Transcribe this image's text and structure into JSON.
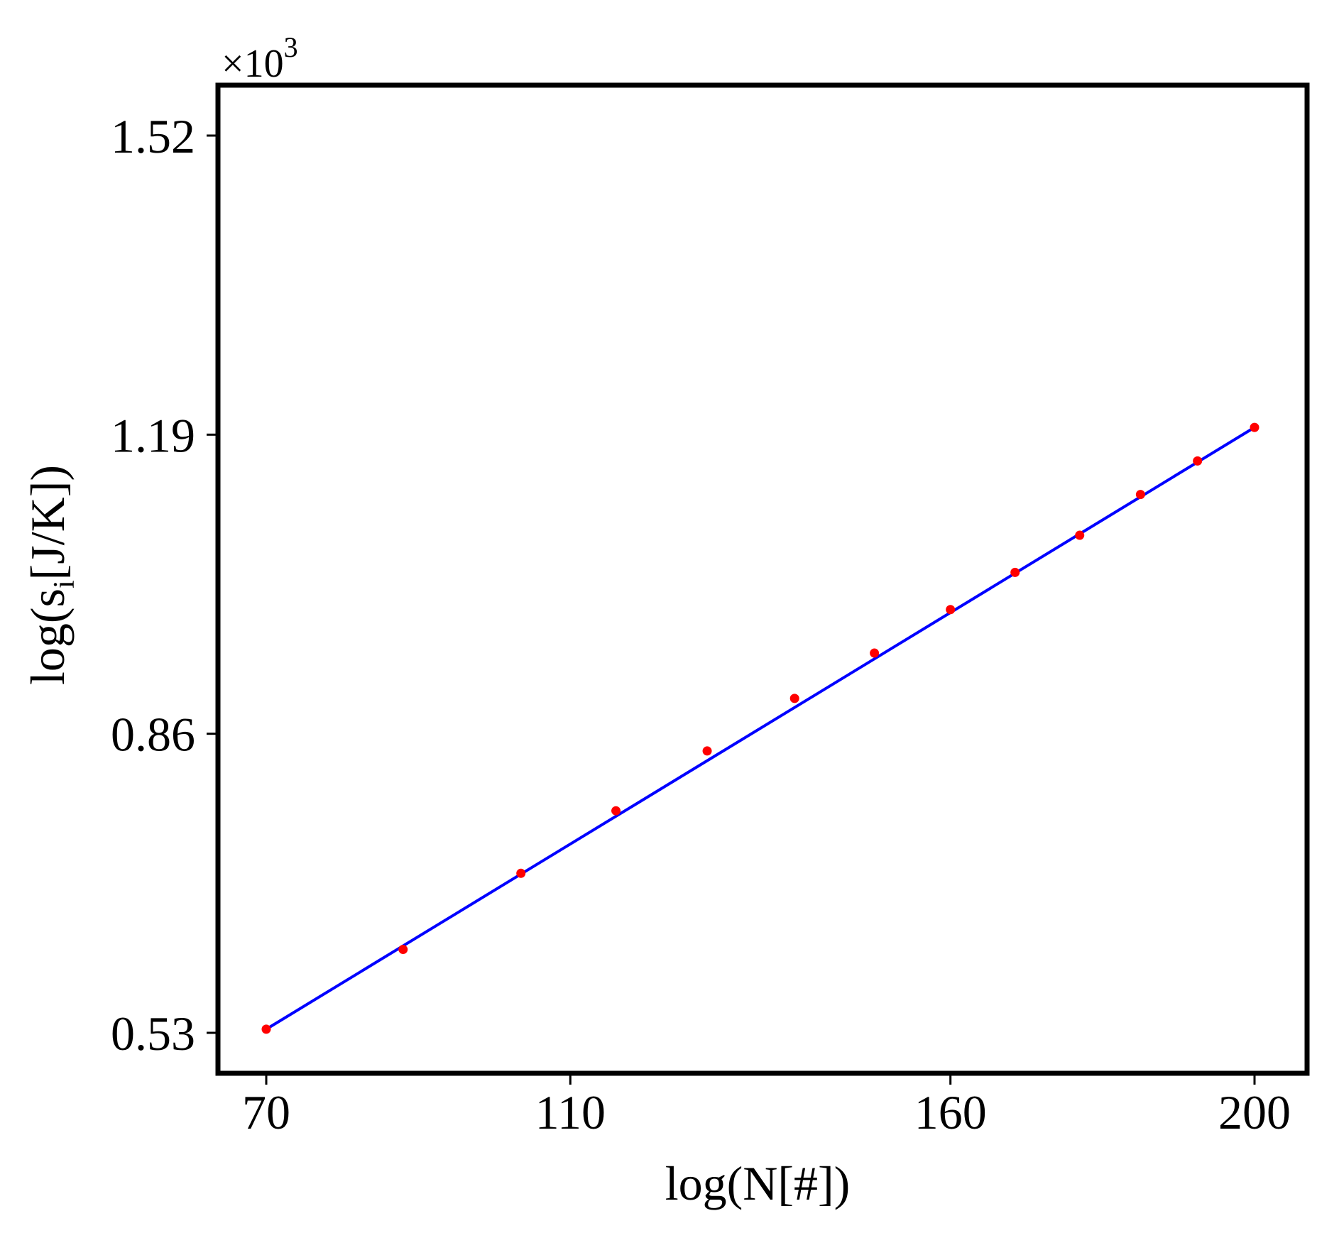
{
  "chart_data": {
    "type": "scatter",
    "title": "",
    "xlabel": "log(N[#])",
    "ylabel_main": "log(s",
    "ylabel_sub": "i",
    "ylabel_rest": "[J/K])",
    "y_multiplier_base": "×10",
    "y_multiplier_exp": "3",
    "x_ticks": [
      70,
      110,
      160,
      200
    ],
    "x_tick_labels": [
      "70",
      "110",
      "160",
      "200"
    ],
    "y_ticks": [
      0.53,
      0.86,
      1.19,
      1.52
    ],
    "y_tick_labels": [
      "0.53",
      "0.86",
      "1.19",
      "1.52"
    ],
    "grid": false,
    "colors": {
      "points": "#ff0000",
      "fit_line": "#0000ff",
      "frame": "#000000"
    },
    "series": [
      {
        "kind": "points",
        "x": [
          70,
          88,
          103.5,
          116,
          128,
          139.5,
          150,
          160,
          168.5,
          177,
          185,
          192.5,
          200
        ],
        "y": [
          0.534,
          0.622,
          0.706,
          0.775,
          0.841,
          0.899,
          0.949,
          0.997,
          1.038,
          1.079,
          1.124,
          1.161,
          1.198
        ]
      },
      {
        "kind": "fit_line",
        "x": [
          70,
          200
        ],
        "y": [
          0.534,
          1.198
        ]
      }
    ]
  }
}
